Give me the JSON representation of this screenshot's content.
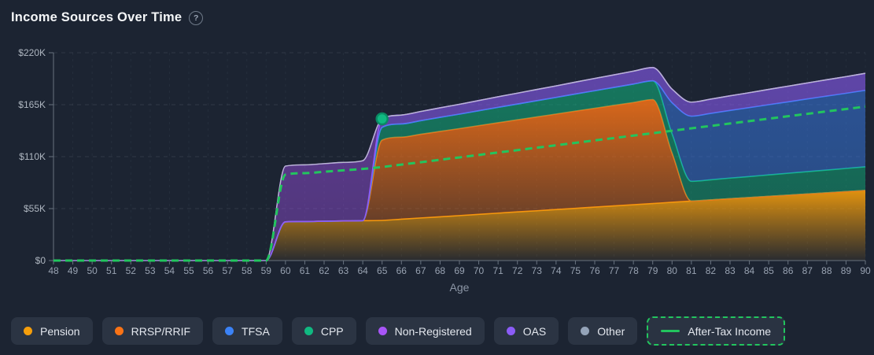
{
  "header": {
    "title": "Income Sources Over Time",
    "help_glyph": "?"
  },
  "chart_data": {
    "type": "area",
    "stacked": true,
    "title": "Income Sources Over Time",
    "xlabel": "Age",
    "ylabel": "",
    "unit": "thousands of dollars",
    "xlim": [
      48,
      90
    ],
    "ylim": [
      0,
      220
    ],
    "grid": true,
    "x": [
      48,
      49,
      50,
      51,
      52,
      53,
      54,
      55,
      56,
      57,
      58,
      59,
      60,
      61,
      62,
      63,
      64,
      65,
      66,
      67,
      68,
      69,
      70,
      71,
      72,
      73,
      74,
      75,
      76,
      77,
      78,
      79,
      80,
      81,
      82,
      83,
      84,
      85,
      86,
      87,
      88,
      89,
      90
    ],
    "y_ticks": {
      "values": [
        0,
        55,
        110,
        165,
        220
      ],
      "labels": [
        "$0",
        "$55K",
        "$110K",
        "$165K",
        "$220K"
      ]
    },
    "series": [
      {
        "id": "pension",
        "name": "Pension",
        "color": "#f59e0b",
        "values": [
          0,
          0,
          0,
          0,
          0,
          0,
          0,
          0,
          0,
          0,
          0,
          0,
          41,
          41.3,
          41.6,
          41.9,
          42.2,
          42.5,
          43.8,
          45.1,
          46.3,
          47.6,
          48.9,
          50.2,
          51.5,
          52.7,
          54,
          55.3,
          56.6,
          57.9,
          59.1,
          60.4,
          61.7,
          63,
          64.2,
          65.5,
          66.7,
          68,
          69.2,
          70.5,
          71.7,
          73,
          74.2
        ]
      },
      {
        "id": "rrsp_rrif",
        "name": "RRSP/RRIF",
        "color": "#f97316",
        "values": [
          0,
          0,
          0,
          0,
          0,
          0,
          0,
          0,
          0,
          0,
          0,
          0,
          0,
          0,
          0,
          0,
          0,
          85,
          86.8,
          88.6,
          90.4,
          92.1,
          93.9,
          95.7,
          97.5,
          99.3,
          101.1,
          102.9,
          104.6,
          106.4,
          108.2,
          110,
          52,
          0,
          0,
          0,
          0,
          0,
          0,
          0,
          0,
          0,
          0
        ]
      },
      {
        "id": "cpp",
        "name": "CPP",
        "color": "#10b981",
        "values": [
          0,
          0,
          0,
          0,
          0,
          0,
          0,
          0,
          0,
          0,
          0,
          0,
          0,
          0,
          0,
          0,
          0,
          13.5,
          14,
          14.4,
          14.9,
          15.3,
          15.8,
          16.3,
          16.7,
          17.2,
          17.6,
          18.1,
          18.6,
          19,
          19.5,
          19.9,
          20.4,
          20.9,
          21.3,
          21.8,
          22.2,
          22.7,
          23.2,
          23.6,
          24.1,
          24.5,
          25
        ]
      },
      {
        "id": "tfsa",
        "name": "TFSA",
        "color": "#3b82f6",
        "values": [
          0,
          0,
          0,
          0,
          0,
          0,
          0,
          0,
          0,
          0,
          0,
          0,
          0,
          0,
          0,
          0,
          0,
          0,
          0,
          0,
          0,
          0,
          0,
          0,
          0,
          0,
          0,
          0,
          0,
          0,
          0,
          0,
          33,
          69,
          70.3,
          71.6,
          73,
          74.3,
          75.6,
          77,
          78.3,
          79.6,
          81
        ]
      },
      {
        "id": "oas",
        "name": "OAS",
        "color": "#8b5cf6",
        "values": [
          0,
          0,
          0,
          0,
          0,
          0,
          0,
          0,
          0,
          0,
          0,
          0,
          0,
          0,
          0,
          0,
          0,
          9,
          9.4,
          9.7,
          10.1,
          10.4,
          10.8,
          11.2,
          11.5,
          11.9,
          12.2,
          12.6,
          13,
          13.3,
          13.7,
          14,
          14.4,
          14.8,
          15.1,
          15.5,
          15.8,
          16.2,
          16.6,
          16.9,
          17.3,
          17.6,
          18
        ]
      },
      {
        "id": "non_registered",
        "name": "Non-Registered",
        "color": "#a855f7",
        "values": [
          0,
          0,
          0,
          0,
          0,
          0,
          0,
          0,
          0,
          0,
          0,
          0,
          59,
          60,
          61,
          62,
          63.5,
          0,
          0,
          0,
          0,
          0,
          0,
          0,
          0,
          0,
          0,
          0,
          0,
          0,
          0,
          0,
          0,
          0,
          0,
          0,
          0,
          0,
          0,
          0,
          0,
          0,
          0
        ]
      },
      {
        "id": "other",
        "name": "Other",
        "color": "#b7bfca",
        "values": [
          0,
          0,
          0,
          0,
          0,
          0,
          0,
          0,
          0,
          0,
          0,
          0,
          0,
          0,
          0,
          0,
          0,
          0,
          0,
          0,
          0,
          0,
          0,
          0,
          0,
          0,
          0,
          0,
          0,
          0,
          0,
          0,
          0,
          0,
          0,
          0,
          0,
          0,
          0,
          0,
          0,
          0,
          0
        ]
      }
    ],
    "line_series": {
      "id": "after_tax",
      "name": "After-Tax Income",
      "color": "#22c55e",
      "style": "dashed",
      "values": [
        0,
        0,
        0,
        0,
        0,
        0,
        0,
        0,
        0,
        0,
        0,
        0,
        91,
        92.5,
        94,
        95.5,
        97,
        99,
        101.6,
        104.1,
        106.7,
        109.2,
        111.8,
        114.4,
        116.9,
        119.5,
        122,
        124.6,
        127.2,
        129.7,
        132.3,
        134.8,
        137.4,
        140,
        142.5,
        145.1,
        147.6,
        150.2,
        152.8,
        155.3,
        157.9,
        160.4,
        163
      ]
    },
    "marker": {
      "age": 65,
      "value": 150,
      "color": "#10b981",
      "ring_color": "#0a8b63"
    }
  },
  "legend": {
    "items": [
      {
        "id": "pension",
        "label": "Pension",
        "color": "#f59e0b",
        "type": "dot"
      },
      {
        "id": "rrsp-rrif",
        "label": "RRSP/RRIF",
        "color": "#f97316",
        "type": "dot"
      },
      {
        "id": "tfsa",
        "label": "TFSA",
        "color": "#3b82f6",
        "type": "dot"
      },
      {
        "id": "cpp",
        "label": "CPP",
        "color": "#10b981",
        "type": "dot"
      },
      {
        "id": "non-registered",
        "label": "Non-Registered",
        "color": "#a855f7",
        "type": "dot"
      },
      {
        "id": "oas",
        "label": "OAS",
        "color": "#8b5cf6",
        "type": "dot"
      },
      {
        "id": "other",
        "label": "Other",
        "color": "#94a3b8",
        "type": "dot"
      },
      {
        "id": "after-tax-income",
        "label": "After-Tax Income",
        "color": "#22c55e",
        "type": "dashed-line"
      }
    ]
  }
}
